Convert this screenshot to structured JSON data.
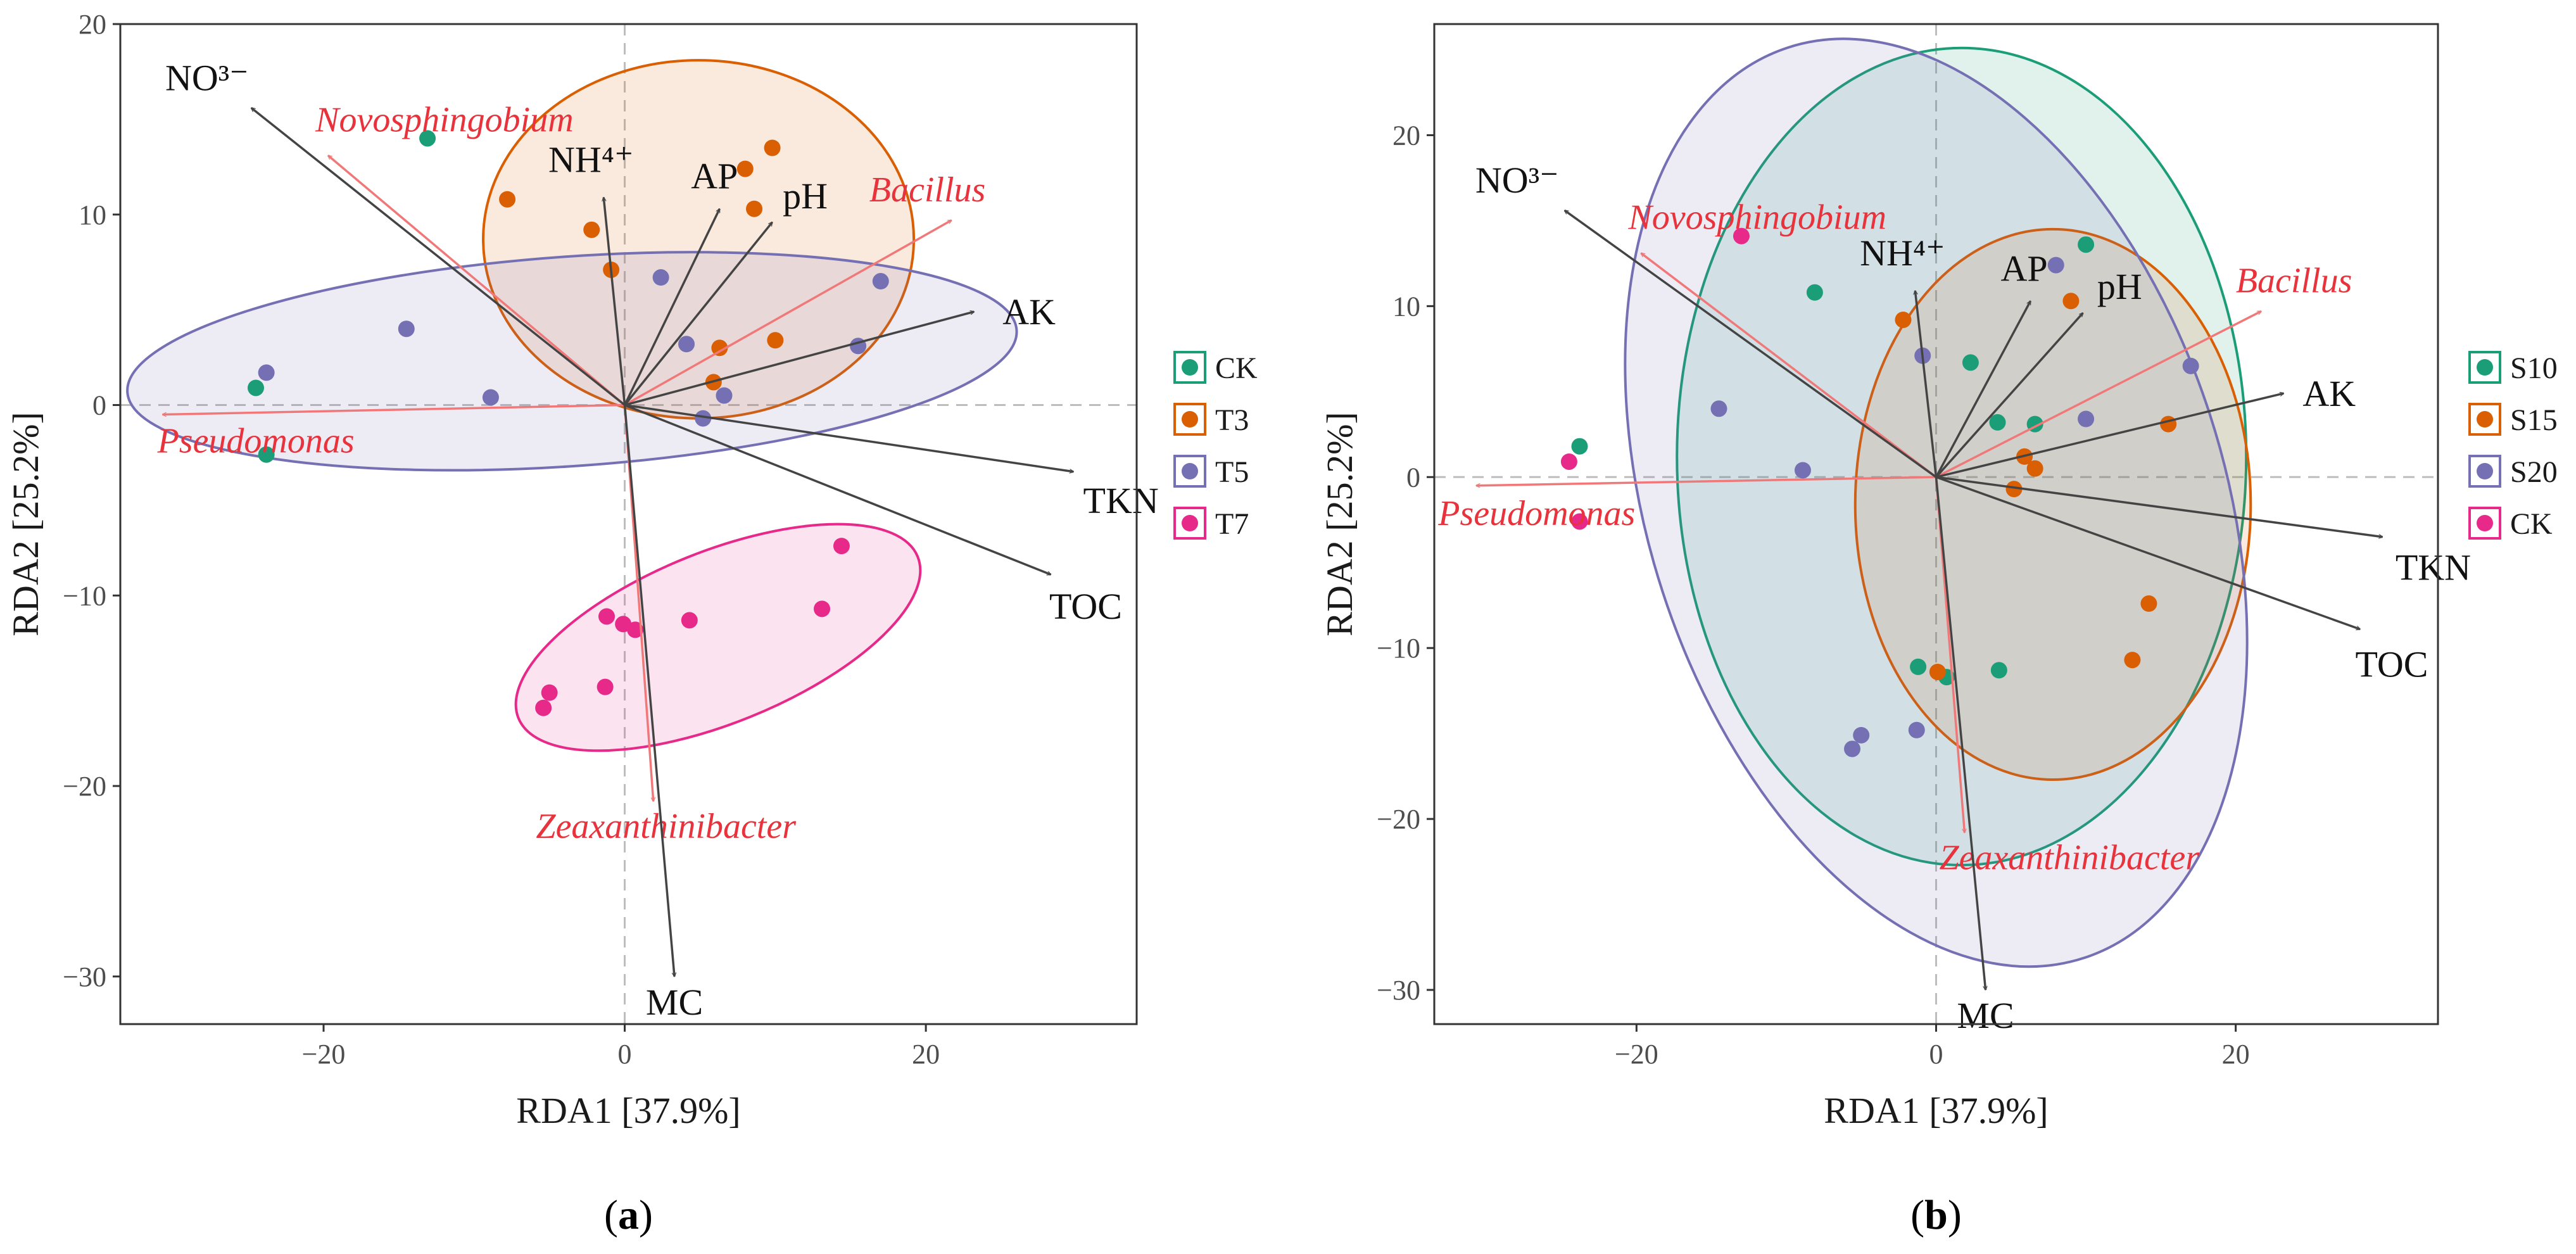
{
  "chart_data": [
    {
      "type": "scatter",
      "panel_label": "a",
      "xlabel": "RDA1 [37.9%]",
      "ylabel": "RDA2 [25.2%]",
      "xlim": [
        -33.5,
        34
      ],
      "ylim": [
        -32.5,
        20
      ],
      "xticks": [
        -20,
        0,
        20
      ],
      "yticks": [
        20,
        10,
        0,
        -10,
        -20,
        -30
      ],
      "groups": [
        {
          "name": "CK",
          "color": "#1b9e77",
          "points": [
            [
              -13.1,
              14.0
            ],
            [
              -24.5,
              0.9
            ],
            [
              -23.8,
              -2.6
            ]
          ],
          "ellipse": null
        },
        {
          "name": "T3",
          "color": "#d95f02",
          "points": [
            [
              -7.8,
              10.8
            ],
            [
              -2.2,
              9.2
            ],
            [
              -0.9,
              7.1
            ],
            [
              8.0,
              12.4
            ],
            [
              9.8,
              13.5
            ],
            [
              8.6,
              10.3
            ],
            [
              10.0,
              3.4
            ],
            [
              6.3,
              3.0
            ],
            [
              5.9,
              1.2
            ]
          ],
          "ellipse": {
            "cx": 4.9,
            "cy": 8.7,
            "rx": 14.3,
            "ry": 9.4,
            "angle": 0
          }
        },
        {
          "name": "T5",
          "color": "#7570b3",
          "points": [
            [
              -23.8,
              1.7
            ],
            [
              -14.5,
              4.0
            ],
            [
              -8.9,
              0.4
            ],
            [
              2.4,
              6.7
            ],
            [
              4.1,
              3.2
            ],
            [
              15.5,
              3.1
            ],
            [
              17.0,
              6.5
            ],
            [
              6.6,
              0.5
            ],
            [
              5.2,
              -0.7
            ]
          ],
          "ellipse": {
            "cx": -3.5,
            "cy": 2.3,
            "rx": 29.6,
            "ry": 5.5,
            "angle": 4
          }
        },
        {
          "name": "T7",
          "color": "#e7298a",
          "points": [
            [
              -1.2,
              -11.1
            ],
            [
              -0.1,
              -11.5
            ],
            [
              0.7,
              -11.8
            ],
            [
              4.3,
              -11.3
            ],
            [
              -5.0,
              -15.1
            ],
            [
              -5.4,
              -15.9
            ],
            [
              -1.3,
              -14.8
            ],
            [
              13.1,
              -10.7
            ],
            [
              14.4,
              -7.4
            ]
          ],
          "ellipse": {
            "cx": 6.2,
            "cy": -12.2,
            "rx": 14.3,
            "ry": 4.5,
            "angle": 22
          }
        }
      ],
      "env_arrows": [
        {
          "label": "NO³⁻",
          "x": -24.8,
          "y": 15.6
        },
        {
          "label": "NH⁴⁺",
          "x": -1.4,
          "y": 10.9
        },
        {
          "label": "AP",
          "x": 6.3,
          "y": 10.3
        },
        {
          "label": "pH",
          "x": 9.8,
          "y": 9.6
        },
        {
          "label": "AK",
          "x": 23.2,
          "y": 4.9
        },
        {
          "label": "TKN",
          "x": 29.8,
          "y": -3.5
        },
        {
          "label": "TOC",
          "x": 28.3,
          "y": -8.9
        },
        {
          "label": "MC",
          "x": 3.3,
          "y": -30.0
        }
      ],
      "taxa_arrows": [
        {
          "label": "Novosphingobium",
          "x": -19.7,
          "y": 13.1
        },
        {
          "label": "Bacillus",
          "x": 21.7,
          "y": 9.7
        },
        {
          "label": "Pseudomonas",
          "x": -30.7,
          "y": -0.5
        },
        {
          "label": "Zeaxanthinibacter",
          "x": 1.9,
          "y": -20.8
        }
      ]
    },
    {
      "type": "scatter",
      "panel_label": "b",
      "xlabel": "RDA1 [37.9%]",
      "ylabel": "RDA2 [25.2%]",
      "xlim": [
        -33.5,
        33.5
      ],
      "ylim": [
        -32,
        26.5
      ],
      "xticks": [
        -20,
        0,
        20
      ],
      "yticks": [
        20,
        10,
        0,
        -10,
        -20,
        -30
      ],
      "groups": [
        {
          "name": "S10",
          "color": "#1b9e77",
          "points": [
            [
              -23.8,
              1.8
            ],
            [
              -8.1,
              10.8
            ],
            [
              2.3,
              6.7
            ],
            [
              10.0,
              13.6
            ],
            [
              4.1,
              3.2
            ],
            [
              6.6,
              3.1
            ],
            [
              -1.2,
              -11.1
            ],
            [
              0.7,
              -11.7
            ],
            [
              4.2,
              -11.3
            ]
          ],
          "ellipse": {
            "cx": 1.7,
            "cy": 1.2,
            "rx": 19.0,
            "ry": 23.9,
            "angle": 0
          }
        },
        {
          "name": "S15",
          "color": "#d95f02",
          "points": [
            [
              -2.2,
              9.2
            ],
            [
              9.0,
              10.3
            ],
            [
              5.9,
              1.2
            ],
            [
              6.6,
              0.5
            ],
            [
              5.2,
              -0.7
            ],
            [
              15.5,
              3.1
            ],
            [
              14.2,
              -7.4
            ],
            [
              13.1,
              -10.7
            ],
            [
              0.1,
              -11.4
            ]
          ],
          "ellipse": {
            "cx": 7.8,
            "cy": -1.6,
            "rx": 13.2,
            "ry": 16.1,
            "angle": 0
          }
        },
        {
          "name": "S20",
          "color": "#7570b3",
          "points": [
            [
              -14.5,
              4.0
            ],
            [
              -8.9,
              0.4
            ],
            [
              -0.9,
              7.1
            ],
            [
              8.0,
              12.4
            ],
            [
              10.0,
              3.4
            ],
            [
              17.0,
              6.5
            ],
            [
              -5.0,
              -15.1
            ],
            [
              -5.6,
              -15.9
            ],
            [
              -1.3,
              -14.8
            ]
          ],
          "ellipse": {
            "cx": 0.0,
            "cy": -1.5,
            "rx": 19.2,
            "ry": 28.0,
            "angle": 18
          }
        },
        {
          "name": "CK",
          "color": "#e7298a",
          "points": [
            [
              -13.0,
              14.1
            ],
            [
              -24.5,
              0.9
            ],
            [
              -23.8,
              -2.6
            ]
          ],
          "ellipse": null
        }
      ],
      "env_arrows": [
        {
          "label": "NO³⁻",
          "x": -24.8,
          "y": 15.6
        },
        {
          "label": "NH⁴⁺",
          "x": -1.4,
          "y": 10.9
        },
        {
          "label": "AP",
          "x": 6.3,
          "y": 10.3
        },
        {
          "label": "pH",
          "x": 9.8,
          "y": 9.6
        },
        {
          "label": "AK",
          "x": 23.2,
          "y": 4.9
        },
        {
          "label": "TKN",
          "x": 29.8,
          "y": -3.5
        },
        {
          "label": "TOC",
          "x": 28.3,
          "y": -8.9
        },
        {
          "label": "MC",
          "x": 3.3,
          "y": -30.0
        }
      ],
      "taxa_arrows": [
        {
          "label": "Novosphingobium",
          "x": -19.7,
          "y": 13.1
        },
        {
          "label": "Bacillus",
          "x": 21.7,
          "y": 9.7
        },
        {
          "label": "Pseudomonas",
          "x": -30.7,
          "y": -0.5
        },
        {
          "label": "Zeaxanthinibacter",
          "x": 1.9,
          "y": -20.8
        }
      ]
    }
  ],
  "colors": {
    "env_arrow": "#444444",
    "taxa_arrow": "#f07878",
    "taxa_text": "#e8323c",
    "refline": "#bdbdbd",
    "frame": "#333333"
  }
}
